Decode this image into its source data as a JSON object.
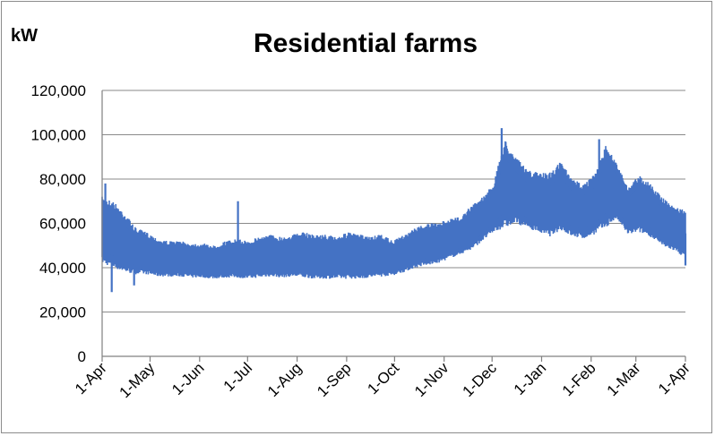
{
  "chart_data": {
    "type": "area",
    "title": "Residential farms",
    "ylabel": "kW",
    "xlabel": "",
    "ylim": [
      0,
      120000
    ],
    "yticks": [
      0,
      20000,
      40000,
      60000,
      80000,
      100000,
      120000
    ],
    "ytick_labels": [
      "0",
      "20,000",
      "40,000",
      "60,000",
      "80,000",
      "100,000",
      "120,000"
    ],
    "xlim": [
      "2000-04-01",
      "2001-04-01"
    ],
    "xticks": [
      "2000-04-01",
      "2000-05-01",
      "2000-06-01",
      "2000-07-01",
      "2000-08-01",
      "2000-09-01",
      "2000-10-01",
      "2000-11-01",
      "2000-12-01",
      "2001-01-01",
      "2001-02-01",
      "2001-03-01",
      "2001-04-01"
    ],
    "xtick_labels": [
      "1-Apr",
      "1-May",
      "1-Jun",
      "1-Jul",
      "1-Aug",
      "1-Sep",
      "1-Oct",
      "1-Nov",
      "1-Dec",
      "1-Jan",
      "1-Feb",
      "1-Mar",
      "1-Apr"
    ],
    "grid": true,
    "legend": "none",
    "series": [
      {
        "color": "#4472c4",
        "x": [
          "2000-04-01",
          "2000-04-08",
          "2000-04-15",
          "2000-04-22",
          "2000-04-29",
          "2000-05-06",
          "2000-05-13",
          "2000-05-20",
          "2000-05-27",
          "2000-06-03",
          "2000-06-10",
          "2000-06-17",
          "2000-06-24",
          "2000-07-01",
          "2000-07-08",
          "2000-07-15",
          "2000-07-22",
          "2000-07-29",
          "2000-08-05",
          "2000-08-12",
          "2000-08-19",
          "2000-08-26",
          "2000-09-02",
          "2000-09-09",
          "2000-09-16",
          "2000-09-23",
          "2000-09-30",
          "2000-10-07",
          "2000-10-14",
          "2000-10-21",
          "2000-10-28",
          "2000-11-04",
          "2000-11-11",
          "2000-11-18",
          "2000-11-25",
          "2000-12-02",
          "2000-12-09",
          "2000-12-16",
          "2000-12-23",
          "2000-12-30",
          "2001-01-06",
          "2001-01-13",
          "2001-01-20",
          "2001-01-27",
          "2001-02-03",
          "2001-02-10",
          "2001-02-17",
          "2001-02-24",
          "2001-03-03",
          "2001-03-10",
          "2001-03-17",
          "2001-03-24",
          "2001-03-31"
        ],
        "daily_max": [
          72000,
          70000,
          65000,
          58000,
          56000,
          53000,
          52000,
          52000,
          51000,
          51000,
          50000,
          52000,
          53000,
          52000,
          54000,
          55000,
          54000,
          55000,
          56000,
          55000,
          55000,
          54000,
          56000,
          55000,
          54000,
          55000,
          52000,
          55000,
          58000,
          60000,
          60000,
          62000,
          63000,
          68000,
          72000,
          78000,
          98000,
          90000,
          84000,
          83000,
          83000,
          88000,
          80000,
          78000,
          82000,
          95000,
          88000,
          76000,
          82000,
          78000,
          72000,
          68000,
          66000
        ],
        "daily_min": [
          42000,
          40000,
          38000,
          37000,
          37000,
          36000,
          36000,
          36000,
          35500,
          35500,
          35000,
          35500,
          35500,
          35000,
          35500,
          36000,
          35500,
          36000,
          35500,
          35000,
          35000,
          35000,
          35000,
          35000,
          35500,
          36000,
          36500,
          38000,
          40000,
          41000,
          42000,
          44000,
          46000,
          48000,
          52000,
          56000,
          58000,
          60000,
          58000,
          56000,
          54000,
          57000,
          54000,
          53000,
          55000,
          58000,
          62000,
          55000,
          56000,
          54000,
          50000,
          48000,
          45000
        ]
      }
    ],
    "annotations": [
      {
        "x": "2000-04-03",
        "y": 78000
      },
      {
        "x": "2000-04-07",
        "y": 29000
      },
      {
        "x": "2000-04-21",
        "y": 32000
      },
      {
        "x": "2000-06-25",
        "y": 70000
      },
      {
        "x": "2000-12-07",
        "y": 103000
      },
      {
        "x": "2001-02-06",
        "y": 98000
      },
      {
        "x": "2001-04-01",
        "y": 41000
      }
    ]
  }
}
